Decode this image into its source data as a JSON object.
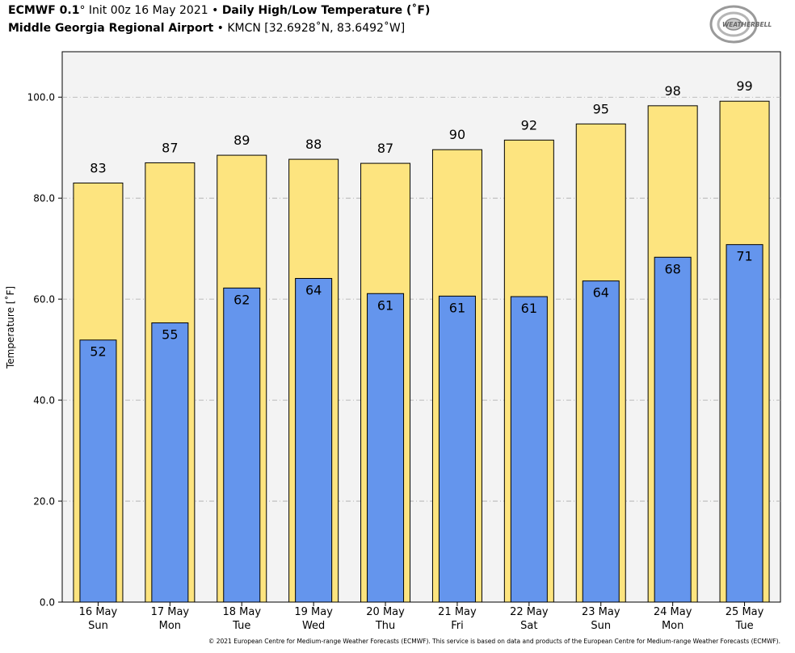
{
  "header": {
    "line1_model": "ECMWF 0.1",
    "line1_deg": "°",
    "line1_init": " Init 00z 16 May 2021",
    "line1_sep": " • ",
    "line1_title": "Daily High/Low Temperature (˚F)",
    "line2_station": "Middle Georgia Regional Airport",
    "line2_sep": " • ",
    "line2_loc": "KMCN [32.6928˚N, 83.6492˚W]"
  },
  "logo": {
    "text": "WEATHERBELL"
  },
  "footer": "© 2021 European Centre for Medium-range Weather Forecasts (ECMWF). This service is based on data and products of the European Centre for Medium-range Weather Forecasts (ECMWF).",
  "colors": {
    "high": "#fde47f",
    "low": "#6495ed",
    "plot_bg": "#f3f3f3",
    "grid": "#aaaaaa"
  },
  "chart_data": {
    "type": "bar",
    "ylabel": "Temperature [˚F]",
    "ylim": [
      0,
      109
    ],
    "yticks": [
      "0.0",
      "20.0",
      "40.0",
      "60.0",
      "80.0",
      "100.0"
    ],
    "ytick_values": [
      0,
      20,
      40,
      60,
      80,
      100
    ],
    "grid": true,
    "categories": [
      [
        "16 May",
        "Sun"
      ],
      [
        "17 May",
        "Mon"
      ],
      [
        "18 May",
        "Tue"
      ],
      [
        "19 May",
        "Wed"
      ],
      [
        "20 May",
        "Thu"
      ],
      [
        "21 May",
        "Fri"
      ],
      [
        "22 May",
        "Sat"
      ],
      [
        "23 May",
        "Sun"
      ],
      [
        "24 May",
        "Mon"
      ],
      [
        "25 May",
        "Tue"
      ]
    ],
    "series": [
      {
        "values": [
          83.0,
          87.0,
          88.5,
          87.7,
          86.9,
          89.6,
          91.5,
          94.7,
          98.3,
          99.2
        ],
        "labels": [
          "83",
          "87",
          "89",
          "88",
          "87",
          "90",
          "92",
          "95",
          "98",
          "99"
        ]
      },
      {
        "values": [
          51.9,
          55.3,
          62.2,
          64.1,
          61.1,
          60.6,
          60.5,
          63.6,
          68.3,
          70.8
        ],
        "labels": [
          "52",
          "55",
          "62",
          "64",
          "61",
          "61",
          "61",
          "64",
          "68",
          "71"
        ]
      }
    ]
  }
}
